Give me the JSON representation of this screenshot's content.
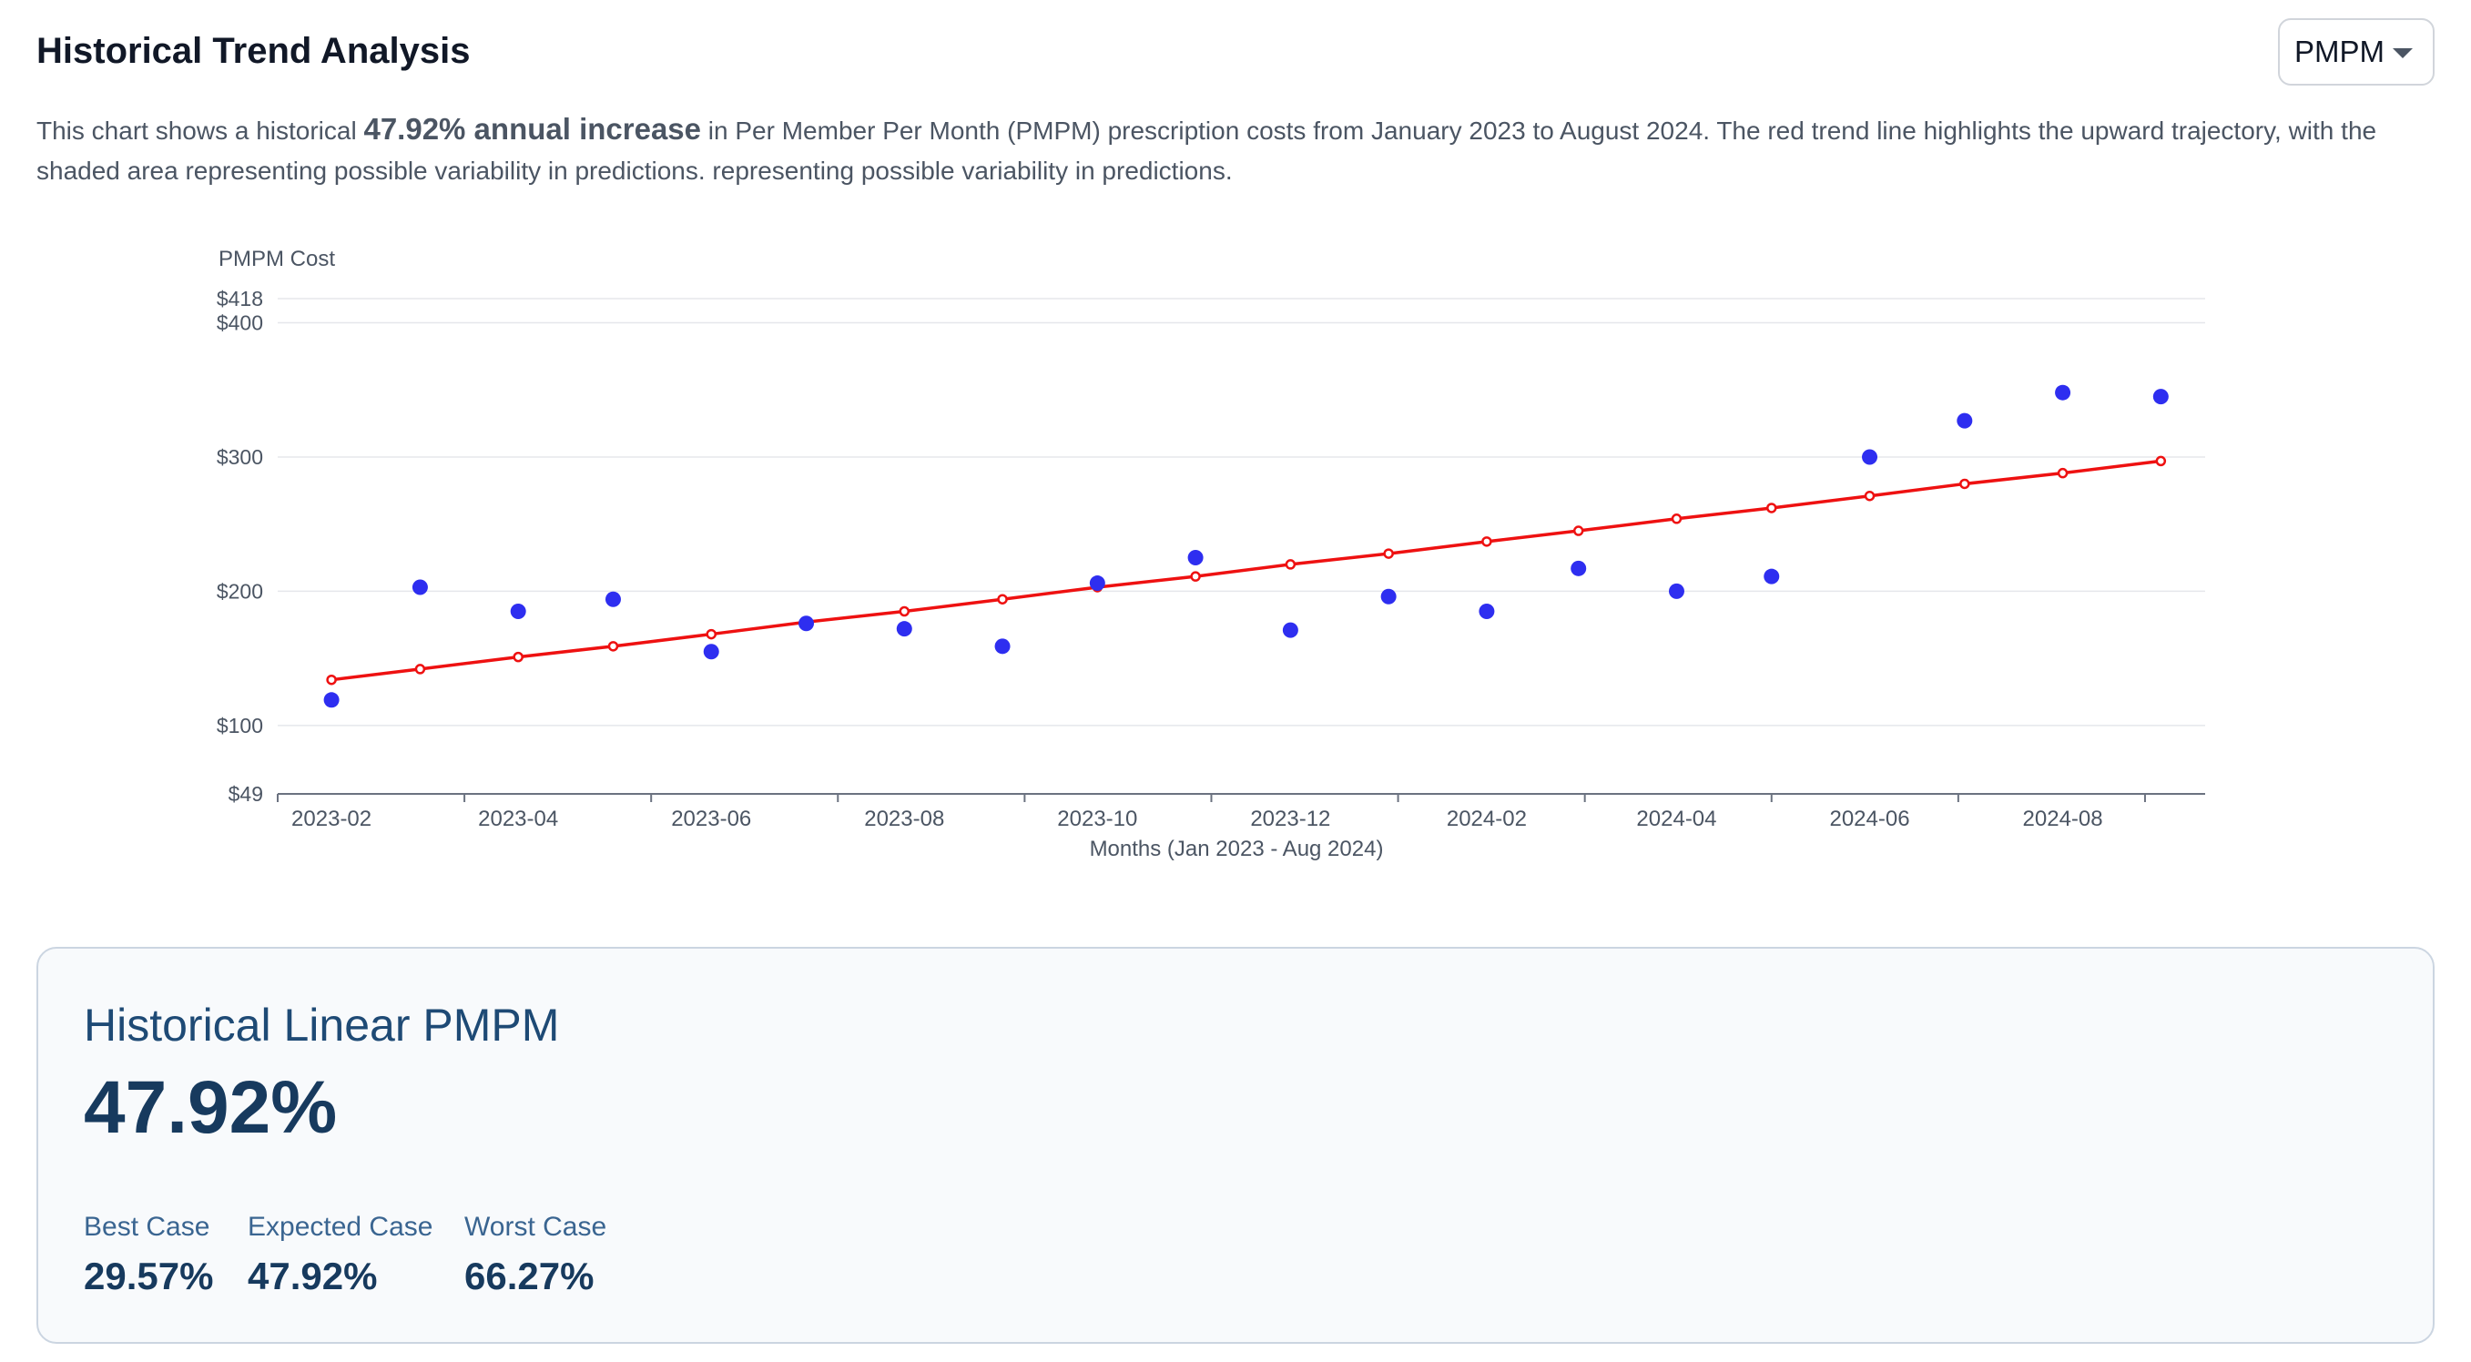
{
  "header": {
    "title": "Historical Trend Analysis",
    "metric_select": "PMPM"
  },
  "description": {
    "pre": "This chart shows a historical ",
    "emphasis": "47.92% annual increase",
    "post": " in Per Member Per Month (PMPM) prescription costs from January 2023 to August 2024. The red trend line highlights the upward trajectory, with the shaded area representing possible variability in predictions. representing possible variability in predictions."
  },
  "chart_data": {
    "type": "scatter",
    "title": "",
    "xlabel": "Months (Jan 2023 - Aug 2024)",
    "ylabel": "PMPM Cost",
    "ylim": [
      49,
      418
    ],
    "yticks": [
      "$49",
      "$100",
      "$200",
      "$300",
      "$400",
      "$418"
    ],
    "ytick_values": [
      49,
      100,
      200,
      300,
      400,
      418
    ],
    "xlim": [
      "2023-01-15",
      "2024-09-15"
    ],
    "xticks": [
      "2023-02",
      "2023-04",
      "2023-06",
      "2023-08",
      "2023-10",
      "2023-12",
      "2024-02",
      "2024-04",
      "2024-06",
      "2024-08"
    ],
    "grid": true,
    "x": [
      "2023-02-01",
      "2023-03-01",
      "2023-04-01",
      "2023-05-01",
      "2023-06-01",
      "2023-07-01",
      "2023-08-01",
      "2023-09-01",
      "2023-10-01",
      "2023-11-01",
      "2023-12-01",
      "2024-01-01",
      "2024-02-01",
      "2024-03-01",
      "2024-04-01",
      "2024-05-01",
      "2024-06-01",
      "2024-07-01",
      "2024-08-01",
      "2024-09-01"
    ],
    "series": [
      {
        "type": "scatter",
        "color": "#2e2ef0",
        "values": [
          119,
          203,
          185,
          194,
          155,
          176,
          172,
          159,
          206,
          225,
          171,
          196,
          185,
          217,
          200,
          211,
          300,
          327,
          348,
          345
        ]
      },
      {
        "type": "line",
        "color": "#ee1111",
        "values": [
          134,
          142,
          151,
          159,
          168,
          177,
          185,
          194,
          203,
          211,
          220,
          228,
          237,
          245,
          254,
          262,
          271,
          280,
          288,
          297
        ]
      }
    ]
  },
  "summary": {
    "title": "Historical Linear PMPM",
    "value": "47.92%",
    "cases": [
      {
        "label": "Best Case",
        "value": "29.57%"
      },
      {
        "label": "Expected Case",
        "value": "47.92%"
      },
      {
        "label": "Worst Case",
        "value": "66.27%"
      }
    ]
  }
}
